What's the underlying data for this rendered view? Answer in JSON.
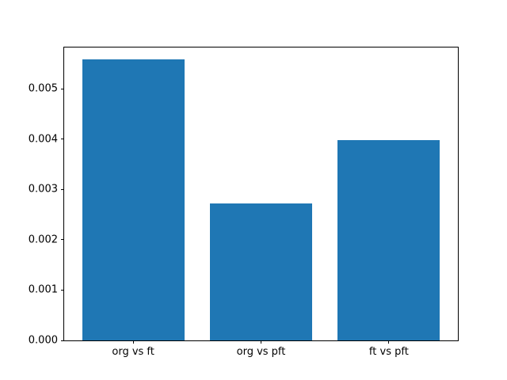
{
  "chart_data": {
    "type": "bar",
    "title": "",
    "xlabel": "",
    "ylabel": "",
    "categories": [
      "org vs ft",
      "org vs pft",
      "ft vs pft"
    ],
    "values": [
      0.00559,
      0.00272,
      0.00398
    ],
    "ylim": [
      0,
      0.00582
    ],
    "yticks": [
      0,
      0.001,
      0.002,
      0.003,
      0.004,
      0.005
    ],
    "ytick_labels": [
      "0.000",
      "0.001",
      "0.002",
      "0.003",
      "0.004",
      "0.005"
    ],
    "bar_color": "#1f77b4",
    "background_color": "#ffffff",
    "grid": false,
    "legend": null
  }
}
